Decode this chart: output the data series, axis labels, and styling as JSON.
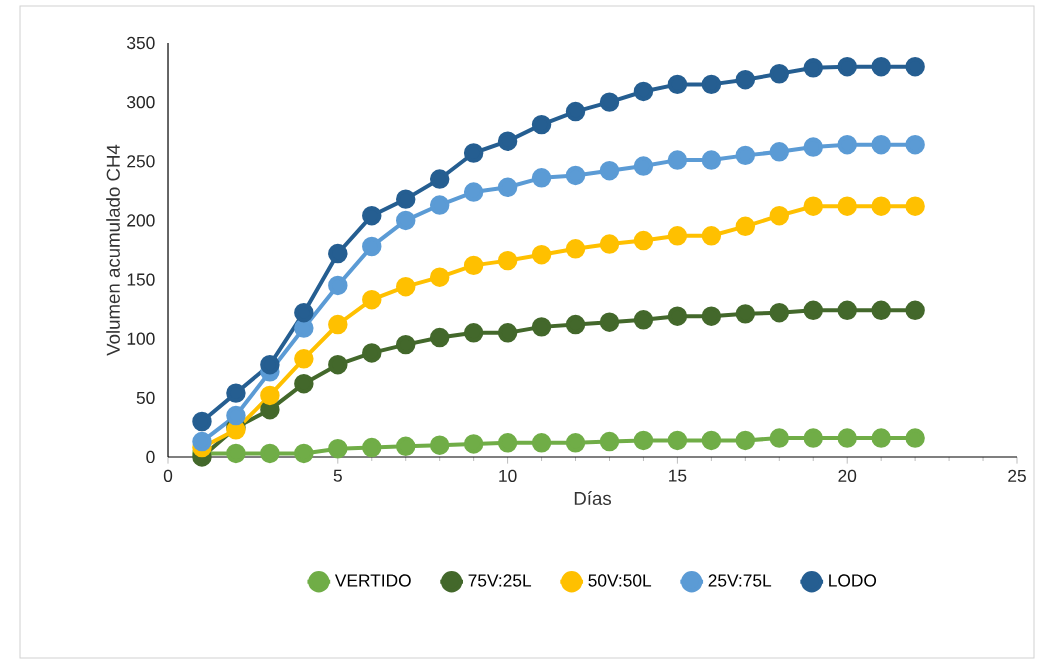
{
  "chart_data": {
    "type": "line",
    "xlabel": "Días",
    "ylabel": "Volumen acumulado CH4",
    "x": [
      1,
      2,
      3,
      4,
      5,
      6,
      7,
      8,
      9,
      10,
      11,
      12,
      13,
      14,
      15,
      16,
      17,
      18,
      19,
      20,
      21,
      22
    ],
    "series": [
      {
        "name": "VERTIDO",
        "color": "#70ad47",
        "values": [
          3,
          3,
          3,
          3,
          7,
          8,
          9,
          10,
          11,
          12,
          12,
          12,
          13,
          14,
          14,
          14,
          14,
          16,
          16,
          16,
          16,
          16
        ]
      },
      {
        "name": "75V:25L",
        "color": "#43682b",
        "values": [
          0,
          25,
          40,
          62,
          78,
          88,
          95,
          101,
          105,
          105,
          110,
          112,
          114,
          116,
          119,
          119,
          121,
          122,
          124,
          124,
          124,
          124
        ]
      },
      {
        "name": "50V:50L",
        "color": "#ffc000",
        "values": [
          8,
          23,
          52,
          83,
          112,
          133,
          144,
          152,
          162,
          166,
          171,
          176,
          180,
          183,
          187,
          187,
          195,
          204,
          212,
          212,
          212,
          212
        ]
      },
      {
        "name": "25V:75L",
        "color": "#5b9bd5",
        "values": [
          13,
          35,
          72,
          109,
          145,
          178,
          200,
          213,
          224,
          228,
          236,
          238,
          242,
          246,
          251,
          251,
          255,
          258,
          262,
          264,
          264,
          264
        ]
      },
      {
        "name": "LODO",
        "color": "#255e91",
        "values": [
          30,
          54,
          78,
          122,
          172,
          204,
          218,
          235,
          257,
          267,
          281,
          292,
          300,
          309,
          315,
          315,
          319,
          324,
          329,
          330,
          330,
          330
        ]
      }
    ],
    "xlim": [
      0,
      25
    ],
    "xticks": [
      0,
      5,
      10,
      15,
      20,
      25
    ],
    "ylim": [
      0,
      350
    ],
    "yticks": [
      0,
      50,
      100,
      150,
      200,
      250,
      300,
      350
    ],
    "grid": false,
    "legend": "bottom",
    "marker": "circle",
    "line_style": "solid"
  }
}
